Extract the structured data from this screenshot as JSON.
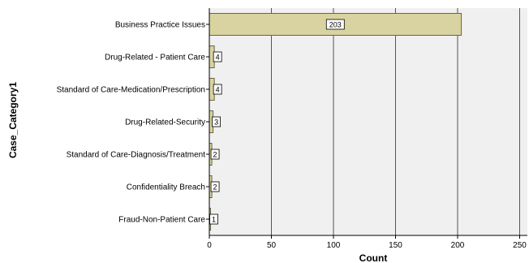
{
  "chart_data": {
    "type": "bar",
    "orientation": "horizontal",
    "categories": [
      "Business Practice Issues",
      "Drug-Related - Patient Care",
      "Standard of Care-Medication/Prescription",
      "Drug-Related-Security",
      "Standard of Care-Diagnosis/Treatment",
      "Confidentiality Breach",
      "Fraud-Non-Patient Care"
    ],
    "values": [
      203,
      4,
      4,
      3,
      2,
      2,
      1
    ],
    "data_labels": [
      "203",
      "4",
      "4",
      "3",
      "2",
      "2",
      "1"
    ],
    "xlabel": "Count",
    "ylabel": "Case_Category1",
    "xlim": [
      0,
      250
    ],
    "xticks": [
      "0",
      "50",
      "100",
      "150",
      "200",
      "250"
    ],
    "grid": "vertical",
    "colors": {
      "bar_fill": "#d8d3a0",
      "bar_stroke": "#6b6640",
      "plot_background": "#f0f0f0",
      "gridline": "#555555",
      "label_box": "#ffffff"
    }
  }
}
